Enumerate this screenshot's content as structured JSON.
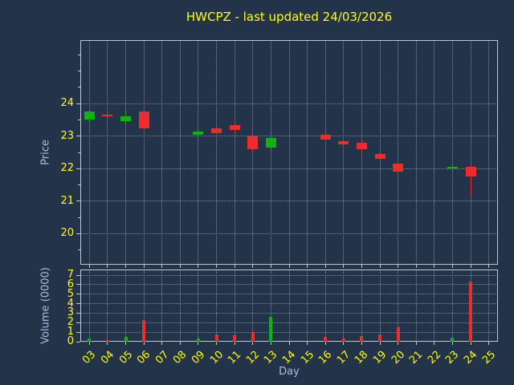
{
  "title": "HWCPZ - last updated 24/03/2026",
  "price_axis": {
    "label": "Price",
    "ticks": [
      20,
      21,
      22,
      23,
      24
    ]
  },
  "volume_axis": {
    "label": "Volume (0000)",
    "ticks": [
      0,
      1,
      2,
      3,
      4,
      5,
      6,
      7
    ]
  },
  "x_axis": {
    "label": "Day",
    "ticks": [
      "03",
      "04",
      "05",
      "06",
      "07",
      "08",
      "09",
      "10",
      "11",
      "12",
      "13",
      "14",
      "15",
      "16",
      "17",
      "18",
      "19",
      "20",
      "21",
      "22",
      "23",
      "24",
      "25"
    ]
  },
  "colors": {
    "background": "#233349",
    "title": "#ffff00",
    "tick": "#ffff00",
    "axis_label": "#a9bedf",
    "grid": "#7a8a9a",
    "spine": "#bfc7d5",
    "up": "#0cb50c",
    "down": "#ee2c2c"
  },
  "chart_data": [
    {
      "type": "candlestick",
      "title": "HWCPZ - last updated 24/03/2026",
      "xlabel": "Day",
      "ylabel": "Price",
      "ylim": [
        19.05,
        25.95
      ],
      "grid": "dotted",
      "ohlc": [
        {
          "day": 3,
          "open": 23.5,
          "high": 23.8,
          "low": 23.45,
          "close": 23.75
        },
        {
          "day": 4,
          "open": 23.65,
          "high": 23.72,
          "low": 23.55,
          "close": 23.6
        },
        {
          "day": 5,
          "open": 23.45,
          "high": 23.78,
          "low": 23.4,
          "close": 23.6
        },
        {
          "day": 6,
          "open": 23.75,
          "high": 23.85,
          "low": 23.2,
          "close": 23.25
        },
        {
          "day": 9,
          "open": 23.05,
          "high": 23.2,
          "low": 23.0,
          "close": 23.15
        },
        {
          "day": 10,
          "open": 23.25,
          "high": 23.3,
          "low": 23.05,
          "close": 23.1
        },
        {
          "day": 11,
          "open": 23.35,
          "high": 23.42,
          "low": 23.1,
          "close": 23.2
        },
        {
          "day": 12,
          "open": 23.0,
          "high": 23.05,
          "low": 22.5,
          "close": 22.6
        },
        {
          "day": 13,
          "open": 22.65,
          "high": 23.1,
          "low": 22.5,
          "close": 22.95
        },
        {
          "day": 16,
          "open": 23.05,
          "high": 23.12,
          "low": 22.85,
          "close": 22.9
        },
        {
          "day": 17,
          "open": 22.85,
          "high": 22.92,
          "low": 22.65,
          "close": 22.75
        },
        {
          "day": 18,
          "open": 22.8,
          "high": 22.85,
          "low": 22.5,
          "close": 22.6
        },
        {
          "day": 19,
          "open": 22.45,
          "high": 22.52,
          "low": 22.2,
          "close": 22.3
        },
        {
          "day": 20,
          "open": 22.15,
          "high": 22.22,
          "low": 21.8,
          "close": 21.9
        },
        {
          "day": 23,
          "open": 22.0,
          "high": 22.12,
          "low": 21.92,
          "close": 22.05
        },
        {
          "day": 24,
          "open": 22.05,
          "high": 22.12,
          "low": 21.2,
          "close": 21.75
        }
      ]
    },
    {
      "type": "bar",
      "name": "volume",
      "ylabel": "Volume (0000)",
      "ylim": [
        0,
        7.6
      ],
      "values": [
        {
          "day": 3,
          "value": 0.3,
          "direction": "up"
        },
        {
          "day": 4,
          "value": 0.2,
          "direction": "down"
        },
        {
          "day": 5,
          "value": 0.5,
          "direction": "up"
        },
        {
          "day": 6,
          "value": 2.3,
          "direction": "down"
        },
        {
          "day": 9,
          "value": 0.3,
          "direction": "up"
        },
        {
          "day": 10,
          "value": 0.8,
          "direction": "down"
        },
        {
          "day": 11,
          "value": 0.7,
          "direction": "down"
        },
        {
          "day": 12,
          "value": 1.0,
          "direction": "down"
        },
        {
          "day": 13,
          "value": 2.6,
          "direction": "up"
        },
        {
          "day": 16,
          "value": 0.5,
          "direction": "down"
        },
        {
          "day": 17,
          "value": 0.3,
          "direction": "down"
        },
        {
          "day": 18,
          "value": 0.6,
          "direction": "down"
        },
        {
          "day": 19,
          "value": 0.8,
          "direction": "down"
        },
        {
          "day": 20,
          "value": 1.5,
          "direction": "down"
        },
        {
          "day": 23,
          "value": 0.4,
          "direction": "up"
        },
        {
          "day": 24,
          "value": 6.3,
          "direction": "down"
        }
      ]
    }
  ]
}
